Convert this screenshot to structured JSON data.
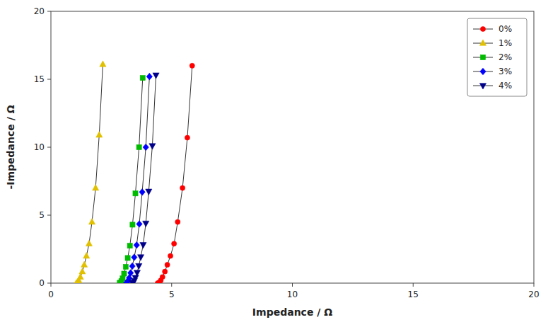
{
  "chart_data": {
    "type": "line",
    "xlabel": "Impedance / Ω",
    "ylabel": "-Impedance / Ω",
    "xlim": [
      0,
      20
    ],
    "ylim": [
      0,
      20
    ],
    "xticks": [
      0,
      5,
      10,
      15,
      20
    ],
    "yticks": [
      0,
      5,
      10,
      15,
      20
    ],
    "grid": false,
    "legend": "upper right",
    "series": [
      {
        "name": "0%",
        "color": "red",
        "marker": "circle",
        "x": [
          5.85,
          5.65,
          5.45,
          5.25,
          5.1,
          4.95,
          4.82,
          4.72,
          4.62,
          4.55,
          4.48,
          4.42
        ],
        "values": [
          16.0,
          10.7,
          7.0,
          4.5,
          2.9,
          2.0,
          1.35,
          0.85,
          0.45,
          0.2,
          0.05,
          0.0
        ]
      },
      {
        "name": "1%",
        "color": "#e0c000",
        "marker": "triangle-up",
        "x": [
          2.15,
          2.0,
          1.85,
          1.7,
          1.58,
          1.47,
          1.38,
          1.3,
          1.22,
          1.15,
          1.1,
          1.05
        ],
        "values": [
          16.1,
          10.9,
          7.0,
          4.5,
          2.9,
          2.0,
          1.35,
          0.85,
          0.45,
          0.2,
          0.06,
          0.0
        ]
      },
      {
        "name": "2%",
        "color": "#00bb00",
        "marker": "square",
        "x": [
          3.8,
          3.65,
          3.5,
          3.38,
          3.27,
          3.18,
          3.1,
          3.03,
          2.97,
          2.92,
          2.88,
          2.85
        ],
        "values": [
          15.1,
          10.0,
          6.6,
          4.3,
          2.75,
          1.85,
          1.2,
          0.7,
          0.35,
          0.15,
          0.04,
          0.0
        ]
      },
      {
        "name": "3%",
        "color": "blue",
        "marker": "diamond",
        "x": [
          4.08,
          3.93,
          3.78,
          3.66,
          3.55,
          3.45,
          3.37,
          3.3,
          3.24,
          3.19,
          3.15,
          3.12
        ],
        "values": [
          15.2,
          10.0,
          6.7,
          4.35,
          2.8,
          1.9,
          1.25,
          0.75,
          0.38,
          0.17,
          0.05,
          0.0
        ]
      },
      {
        "name": "4%",
        "color": "#00008b",
        "marker": "triangle-down",
        "x": [
          4.35,
          4.2,
          4.05,
          3.93,
          3.82,
          3.72,
          3.64,
          3.57,
          3.5,
          3.45,
          3.41,
          3.38
        ],
        "values": [
          15.3,
          10.1,
          6.75,
          4.4,
          2.82,
          1.92,
          1.27,
          0.77,
          0.4,
          0.18,
          0.05,
          0.0
        ]
      }
    ]
  }
}
